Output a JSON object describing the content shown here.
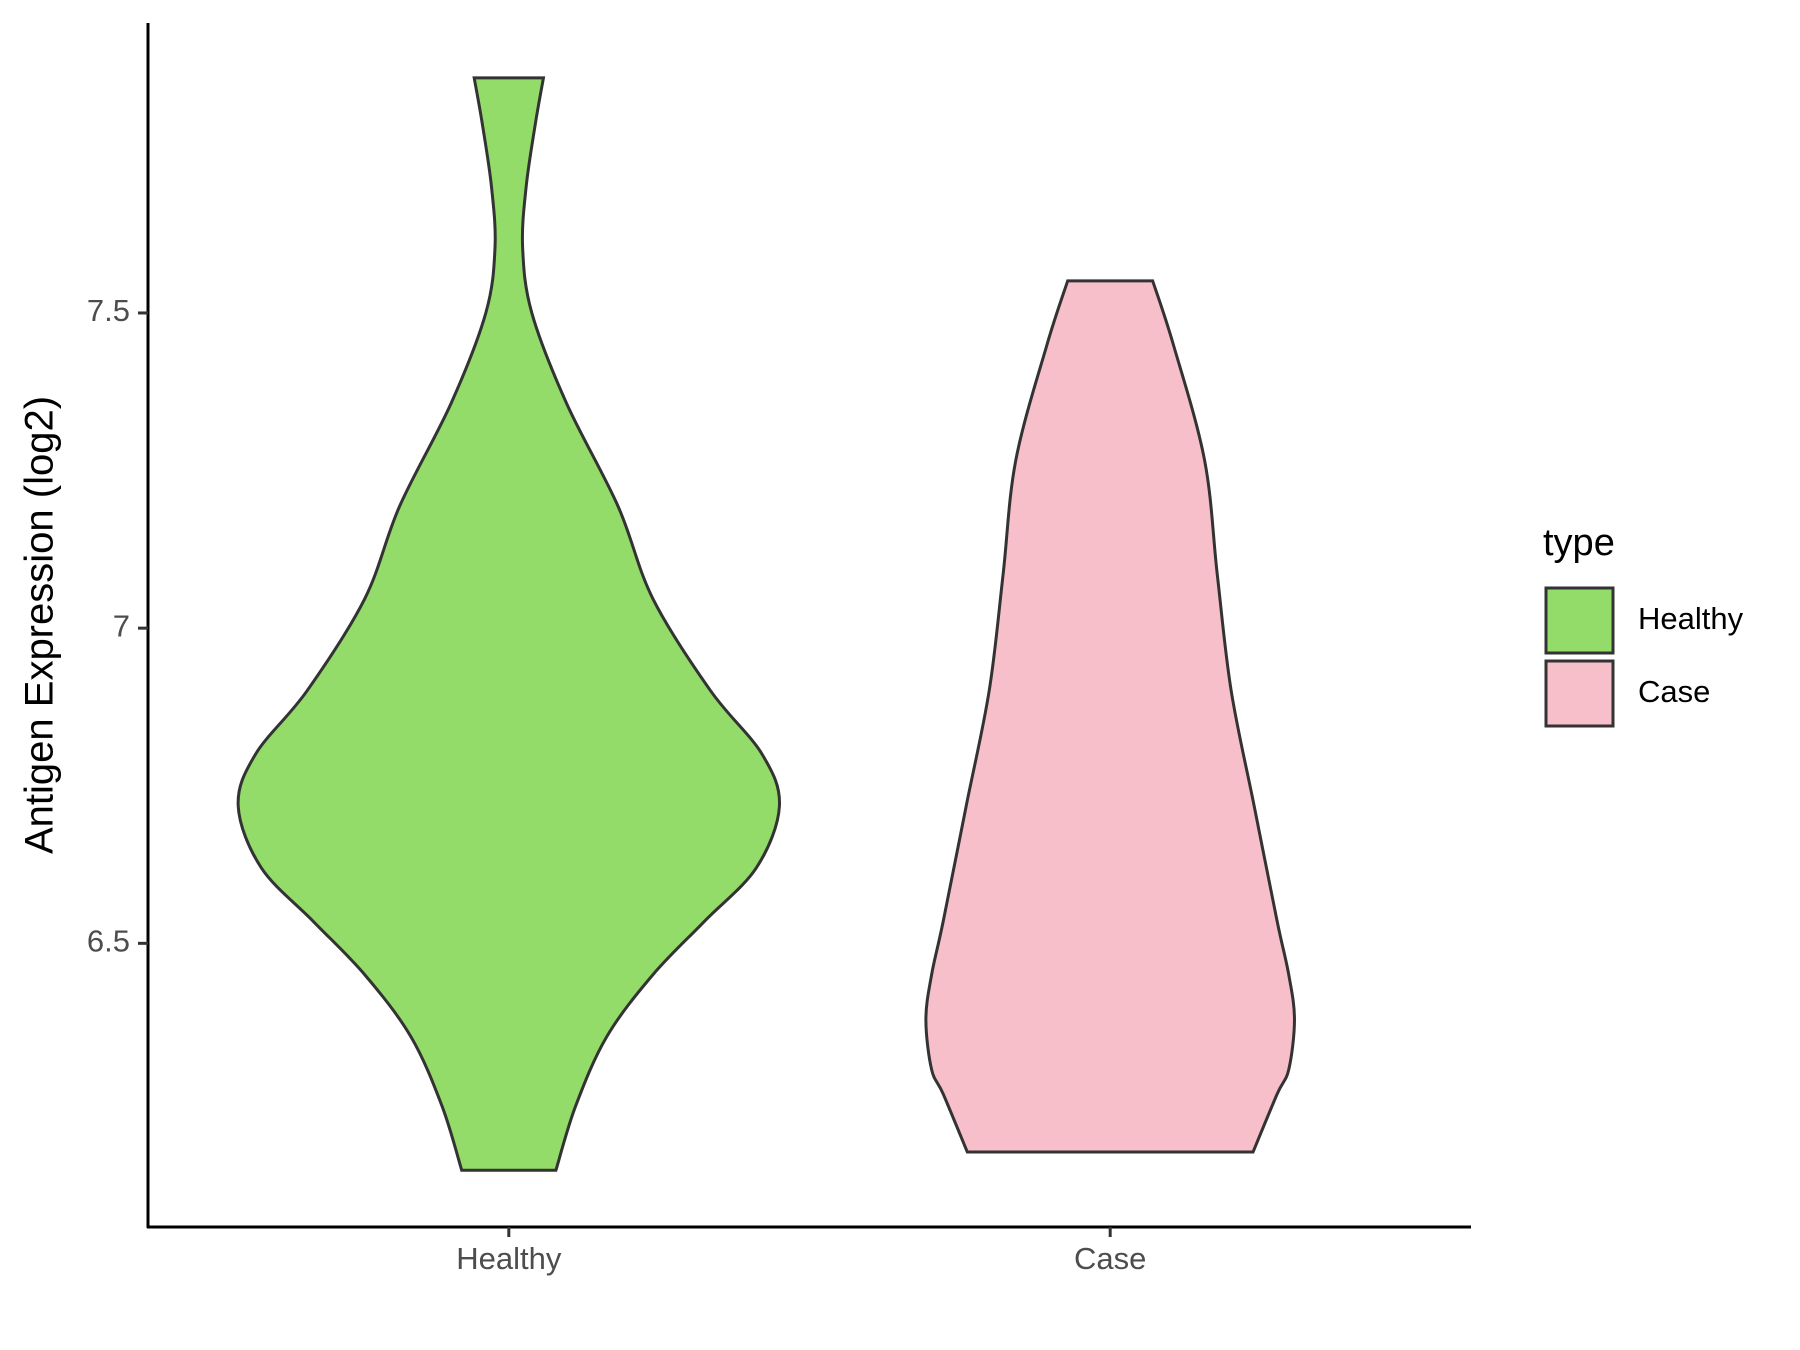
{
  "chart_data": {
    "type": "violin",
    "y_label": "Antigen Expression (log2)",
    "categories": [
      "Healthy",
      "Case"
    ],
    "ylim": [
      6.05,
      7.96
    ],
    "yticks": [
      6.5,
      7.0,
      7.5
    ],
    "legend_title": "type",
    "legend_position": "right",
    "series": [
      {
        "name": "Healthy",
        "color": "#93dc6a",
        "y": [
          7.873,
          7.8,
          7.7,
          7.604,
          7.5,
          7.357,
          7.193,
          7.047,
          6.901,
          6.8,
          6.718,
          6.62,
          6.535,
          6.45,
          6.352,
          6.242,
          6.14
        ],
        "widths": [
          0.128,
          0.098,
          0.064,
          0.051,
          0.085,
          0.213,
          0.404,
          0.532,
          0.745,
          0.936,
          1,
          0.915,
          0.723,
          0.532,
          0.362,
          0.247,
          0.174
        ]
      },
      {
        "name": "Case",
        "color": "#f7bfca",
        "y": [
          7.551,
          7.449,
          7.266,
          7.084,
          6.901,
          6.718,
          6.535,
          6.45,
          6.379,
          6.3,
          6.261,
          6.169
        ],
        "widths": [
          0.157,
          0.234,
          0.349,
          0.396,
          0.447,
          0.532,
          0.617,
          0.66,
          0.681,
          0.66,
          0.617,
          0.528
        ]
      }
    ]
  }
}
